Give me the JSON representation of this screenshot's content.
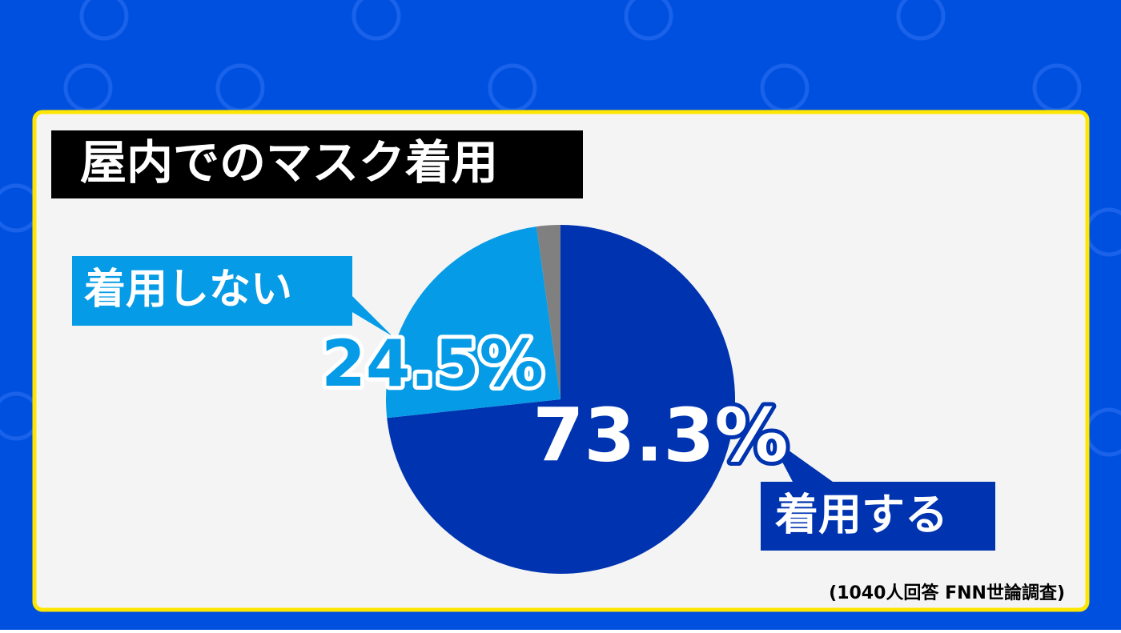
{
  "chart_data": {
    "type": "pie",
    "title": "屋内でのマスク着用",
    "categories": [
      "着用する",
      "着用しない",
      null
    ],
    "values": [
      73.3,
      24.5,
      2.2
    ],
    "value_labels": [
      "73.3%",
      "24.5%",
      null
    ],
    "colors": [
      "#0033b0",
      "#069be6",
      "#808080"
    ],
    "source": "(1040人回答 FNN世論調査)"
  }
}
